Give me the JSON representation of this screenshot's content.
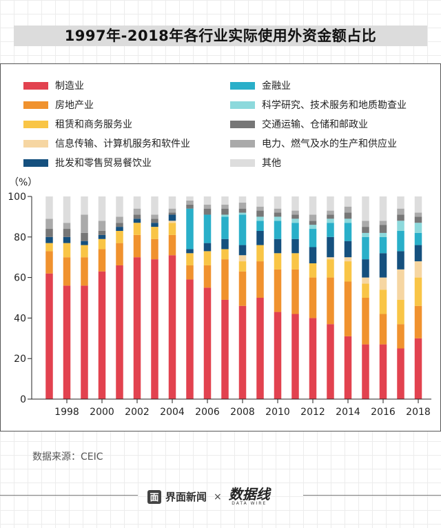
{
  "title": "1997年-2018年各行业实际使用外资金额占比",
  "source": "数据来源：CEIC",
  "brand": {
    "name": "界面新闻",
    "icon_glyph": "面",
    "separator": "×",
    "partner": "数据线",
    "partner_sub": "DATA WIRE"
  },
  "colors": {
    "manufacturing": "#e2424f",
    "finance": "#29afc9",
    "real_estate": "#f0922e",
    "sci_tech": "#8dd9dc",
    "leasing": "#f9c546",
    "transport": "#777777",
    "it": "#f6d6a2",
    "utilities": "#aaaaaa",
    "wholesale": "#15507e",
    "other": "#dddddd"
  },
  "chart_data": {
    "type": "bar",
    "stacked": true,
    "title": "1997年-2018年各行业实际使用外资金额占比",
    "y_unit_label": "（%）",
    "ylim": [
      0,
      100
    ],
    "yticks": [
      0,
      20,
      40,
      60,
      80,
      100
    ],
    "categories": [
      1997,
      1998,
      1999,
      2000,
      2001,
      2002,
      2003,
      2004,
      2005,
      2006,
      2007,
      2008,
      2009,
      2010,
      2011,
      2012,
      2013,
      2014,
      2015,
      2016,
      2017,
      2018
    ],
    "tick_labels": [
      "1998",
      "2000",
      "2002",
      "2004",
      "2006",
      "2008",
      "2010",
      "2012",
      "2014",
      "2016",
      "2018"
    ],
    "legend": [
      "制造业",
      "金融业",
      "房地产业",
      "科学研究、技术服务和地质勘查业",
      "租赁和商务服务业",
      "交通运输、仓储和邮政业",
      "信息传输、计算机服务和软件业",
      "电力、燃气及水的生产和供应业",
      "批发和零售贸易餐饮业",
      "其他"
    ],
    "series": [
      {
        "name": "制造业",
        "color_key": "manufacturing",
        "values": [
          62,
          56,
          56,
          63,
          66,
          70,
          69,
          71,
          59,
          55,
          49,
          46,
          50,
          43,
          42,
          40,
          37,
          31,
          27,
          27,
          25,
          30
        ]
      },
      {
        "name": "房地产业",
        "color_key": "real_estate",
        "values": [
          11,
          14,
          14,
          11,
          11,
          11,
          10,
          10,
          7,
          11,
          20,
          17,
          18,
          21,
          22,
          20,
          23,
          27,
          23,
          15,
          12,
          16
        ]
      },
      {
        "name": "租赁和商务服务业",
        "color_key": "leasing",
        "values": [
          4,
          7,
          6,
          5,
          6,
          6,
          6,
          6,
          6,
          7,
          5,
          5,
          8,
          8,
          8,
          7,
          9,
          10,
          7,
          12,
          12,
          14
        ]
      },
      {
        "name": "信息传输、计算机服务和软件业",
        "color_key": "it",
        "values": [
          0,
          0,
          0,
          0,
          0,
          0,
          0,
          1,
          0,
          0,
          0,
          3,
          0,
          0,
          0,
          0,
          1,
          2,
          3,
          6,
          15,
          8
        ]
      },
      {
        "name": "批发和零售贸易餐饮业",
        "color_key": "wholesale",
        "values": [
          3,
          3,
          2,
          2,
          2,
          2,
          2,
          3,
          2,
          4,
          5,
          5,
          7,
          7,
          7,
          8,
          10,
          8,
          9,
          12,
          9,
          8
        ]
      },
      {
        "name": "金融业",
        "color_key": "finance",
        "values": [
          0,
          0,
          0,
          0,
          0,
          0,
          0,
          0,
          20,
          14,
          11,
          15,
          5,
          9,
          8,
          9,
          7,
          9,
          11,
          8,
          10,
          6
        ]
      },
      {
        "name": "科学研究、技术服务和地质勘查业",
        "color_key": "sci_tech",
        "values": [
          0,
          0,
          0,
          0,
          0,
          0,
          0,
          0,
          0,
          0,
          1,
          1,
          2,
          2,
          2,
          2,
          2,
          2,
          2,
          2,
          5,
          5
        ]
      },
      {
        "name": "交通运输、仓储和邮政业",
        "color_key": "transport",
        "values": [
          4,
          4,
          4,
          2,
          2,
          2,
          2,
          1,
          2,
          3,
          3,
          2,
          3,
          2,
          2,
          2,
          2,
          3,
          3,
          4,
          3,
          3
        ]
      },
      {
        "name": "电力、燃气及水的生产和供应业",
        "color_key": "utilities",
        "values": [
          5,
          3,
          9,
          5,
          3,
          3,
          2,
          2,
          2,
          2,
          2,
          3,
          2,
          2,
          2,
          3,
          2,
          3,
          3,
          2,
          3,
          2
        ]
      },
      {
        "name": "其他",
        "color_key": "other",
        "values": [
          11,
          13,
          9,
          12,
          10,
          6,
          9,
          6,
          2,
          4,
          4,
          3,
          5,
          6,
          7,
          9,
          7,
          5,
          12,
          12,
          6,
          8
        ]
      }
    ]
  }
}
